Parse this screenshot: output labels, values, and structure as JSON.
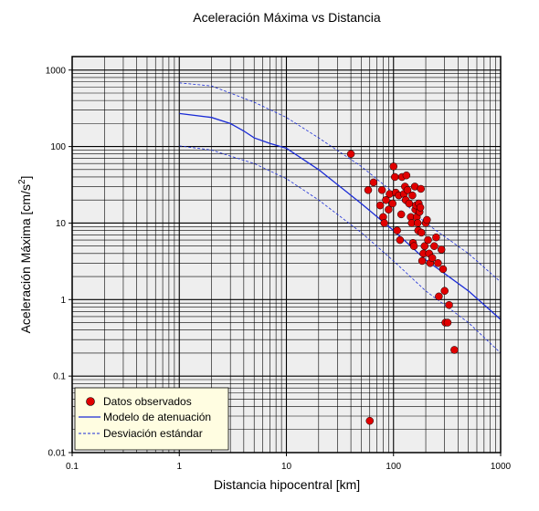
{
  "chart_data": {
    "type": "scatter",
    "title": "Aceleración Máxima vs Distancia",
    "xlabel": "Distancia hipocentral [km]",
    "ylabel_main": "Aceleración Máxima [cm/s",
    "ylabel_sup": "2",
    "ylabel_end": "]",
    "xscale": "log",
    "yscale": "log",
    "xlim": [
      0.1,
      1000
    ],
    "ylim": [
      0.01,
      1500
    ],
    "grid": true,
    "x_ticks": [
      {
        "value": 0.1,
        "label": "0.1"
      },
      {
        "value": 1,
        "label": "1"
      },
      {
        "value": 10,
        "label": "10"
      },
      {
        "value": 100,
        "label": "100"
      },
      {
        "value": 1000,
        "label": "1000"
      }
    ],
    "y_ticks": [
      {
        "value": 0.01,
        "label": "0.01"
      },
      {
        "value": 0.1,
        "label": "0.1"
      },
      {
        "value": 1,
        "label": "1"
      },
      {
        "value": 10,
        "label": "10"
      },
      {
        "value": 100,
        "label": "100"
      },
      {
        "value": 1000,
        "label": "1000"
      }
    ],
    "legend_position": "bottom-left",
    "legend": [
      {
        "label": "Datos observados",
        "kind": "marker",
        "color": "#e00000"
      },
      {
        "label": "Modelo de atenuación",
        "kind": "solid",
        "color": "#1a2bd6"
      },
      {
        "label": "Desviación estándar",
        "kind": "dashed",
        "color": "#1a2bd6"
      }
    ],
    "series": [
      {
        "name": "Datos observados",
        "kind": "scatter",
        "color": "#e00000",
        "points": [
          [
            40,
            80
          ],
          [
            58,
            27
          ],
          [
            65,
            34
          ],
          [
            60,
            0.026
          ],
          [
            75,
            17
          ],
          [
            78,
            27
          ],
          [
            80,
            12
          ],
          [
            82,
            10
          ],
          [
            85,
            20
          ],
          [
            90,
            15
          ],
          [
            92,
            24
          ],
          [
            98,
            18
          ],
          [
            100,
            55
          ],
          [
            103,
            40
          ],
          [
            105,
            25
          ],
          [
            108,
            8
          ],
          [
            112,
            23
          ],
          [
            115,
            6
          ],
          [
            118,
            13
          ],
          [
            120,
            40
          ],
          [
            125,
            24
          ],
          [
            128,
            30
          ],
          [
            130,
            20
          ],
          [
            132,
            42
          ],
          [
            135,
            27
          ],
          [
            140,
            18
          ],
          [
            145,
            12
          ],
          [
            148,
            10
          ],
          [
            150,
            23
          ],
          [
            152,
            5.5
          ],
          [
            155,
            5
          ],
          [
            158,
            30
          ],
          [
            160,
            15
          ],
          [
            162,
            17
          ],
          [
            165,
            12
          ],
          [
            168,
            10
          ],
          [
            170,
            8
          ],
          [
            172,
            18
          ],
          [
            175,
            14
          ],
          [
            178,
            16
          ],
          [
            180,
            28
          ],
          [
            182,
            7.5
          ],
          [
            185,
            3.2
          ],
          [
            190,
            4
          ],
          [
            195,
            5
          ],
          [
            200,
            10
          ],
          [
            205,
            11
          ],
          [
            210,
            6
          ],
          [
            215,
            4
          ],
          [
            220,
            3
          ],
          [
            230,
            3.5
          ],
          [
            240,
            5
          ],
          [
            250,
            6.5
          ],
          [
            260,
            3
          ],
          [
            265,
            1.1
          ],
          [
            280,
            4.5
          ],
          [
            290,
            2.5
          ],
          [
            300,
            1.3
          ],
          [
            305,
            0.5
          ],
          [
            320,
            0.5
          ],
          [
            330,
            0.85
          ],
          [
            370,
            0.22
          ]
        ]
      },
      {
        "name": "Modelo de atenuación",
        "kind": "solid",
        "color": "#1a2bd6",
        "points": [
          [
            1,
            270
          ],
          [
            2,
            240
          ],
          [
            3,
            200
          ],
          [
            4,
            160
          ],
          [
            5,
            130
          ],
          [
            7,
            110
          ],
          [
            10,
            95
          ],
          [
            20,
            50
          ],
          [
            50,
            18
          ],
          [
            100,
            8
          ],
          [
            200,
            3.3
          ],
          [
            500,
            1.3
          ],
          [
            1000,
            0.55
          ]
        ]
      },
      {
        "name": "Desviación estándar (superior)",
        "kind": "dashed",
        "color": "#1a2bd6",
        "points": [
          [
            1,
            680
          ],
          [
            2,
            620
          ],
          [
            3,
            500
          ],
          [
            5,
            380
          ],
          [
            10,
            240
          ],
          [
            20,
            130
          ],
          [
            50,
            55
          ],
          [
            100,
            25
          ],
          [
            200,
            10
          ],
          [
            500,
            4
          ],
          [
            1000,
            1.7
          ]
        ]
      },
      {
        "name": "Desviación estándar (inferior)",
        "kind": "dashed",
        "color": "#1a2bd6",
        "points": [
          [
            1,
            102
          ],
          [
            2,
            90
          ],
          [
            3,
            75
          ],
          [
            5,
            60
          ],
          [
            10,
            38
          ],
          [
            20,
            20
          ],
          [
            50,
            7.5
          ],
          [
            100,
            3.2
          ],
          [
            200,
            1.3
          ],
          [
            500,
            0.5
          ],
          [
            1000,
            0.2
          ]
        ]
      }
    ]
  }
}
